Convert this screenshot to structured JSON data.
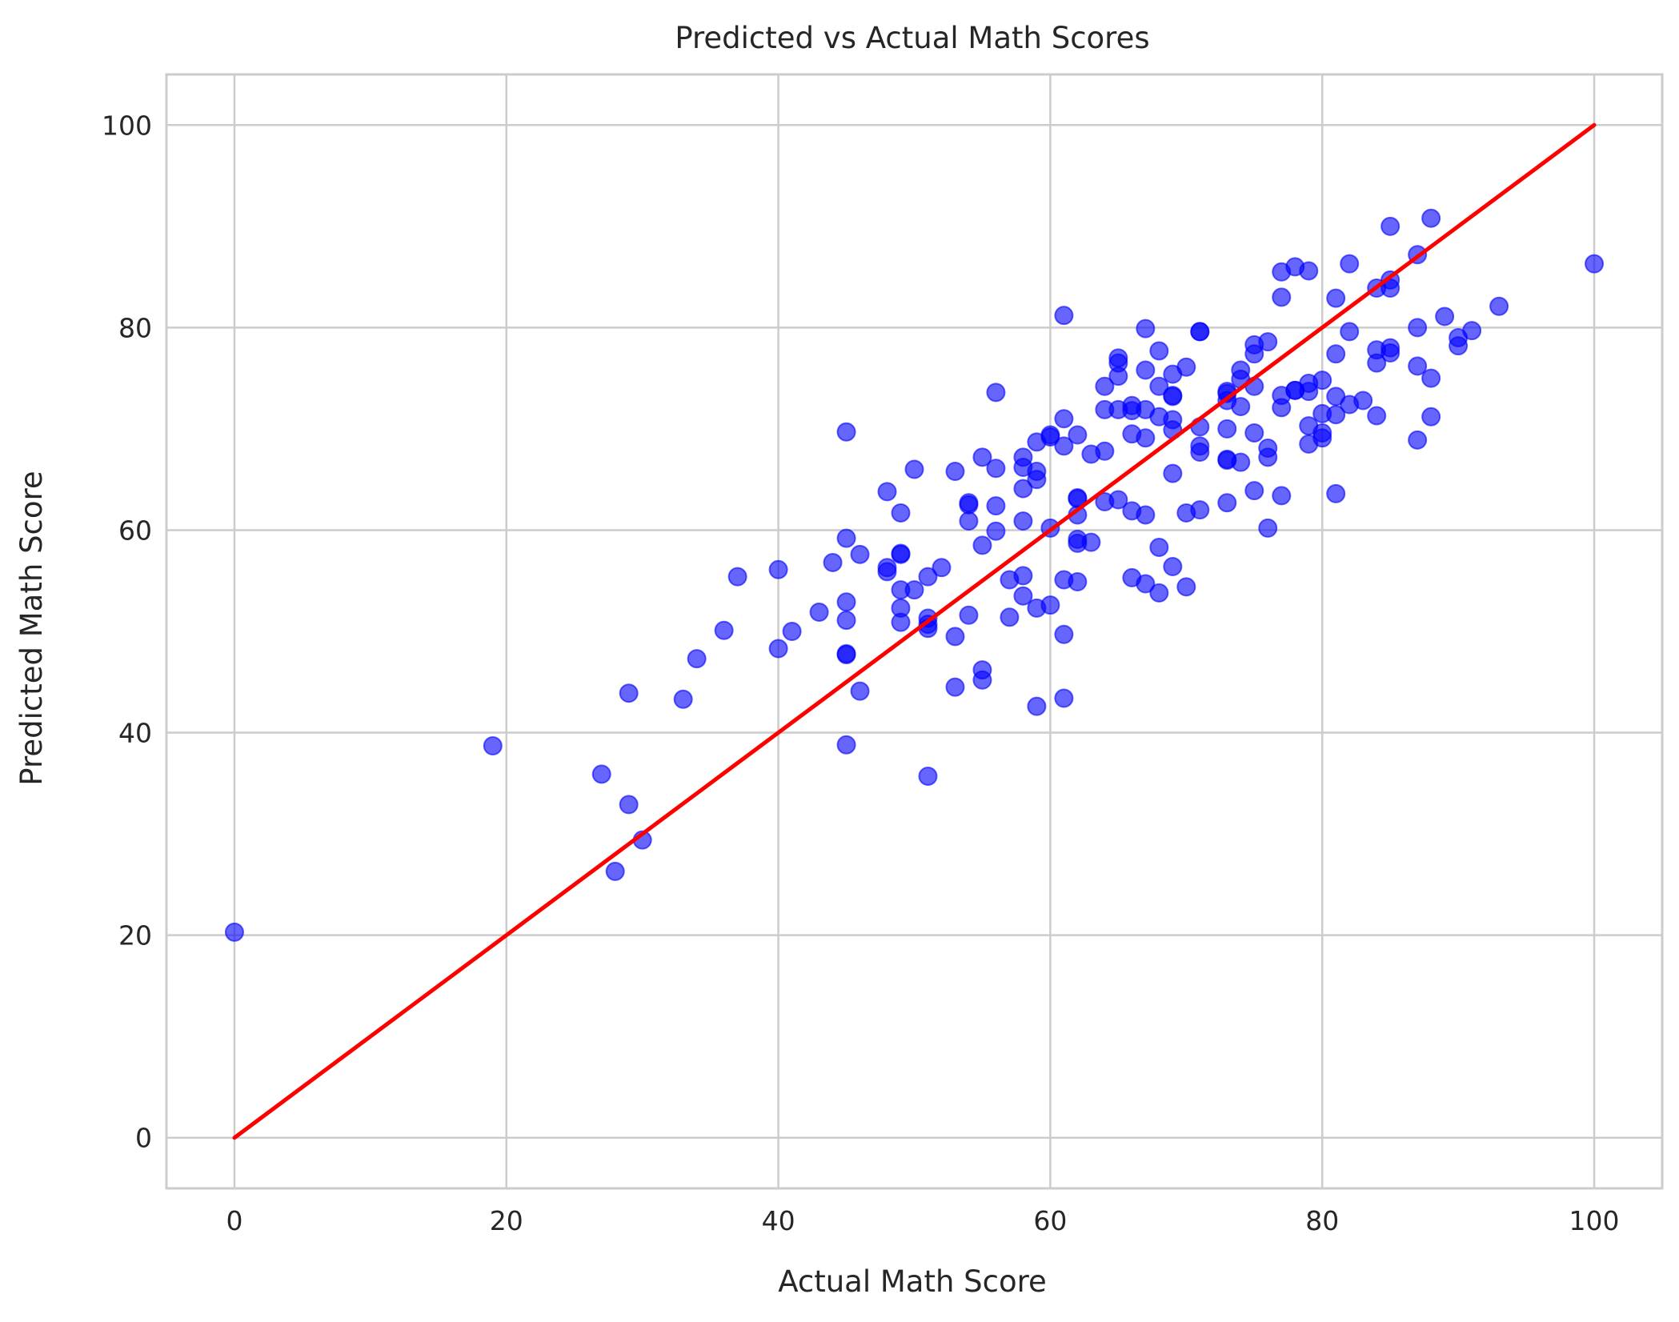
{
  "chart_data": {
    "type": "scatter",
    "title": "Predicted vs Actual Math Scores",
    "xlabel": "Actual Math Score",
    "ylabel": "Predicted Math Score",
    "xlim": [
      -5,
      105
    ],
    "ylim": [
      -5,
      105
    ],
    "xticks": [
      "0",
      "20",
      "40",
      "60",
      "80",
      "100"
    ],
    "yticks": [
      "0",
      "20",
      "40",
      "60",
      "80",
      "100"
    ],
    "grid": true,
    "colors": {
      "points": "#0000ff",
      "line": "#ff0000",
      "grid": "#cccccc",
      "axes": "#cccccc"
    },
    "reference_line": {
      "x": [
        0,
        100
      ],
      "y": [
        0,
        100
      ]
    },
    "points": [
      [
        0,
        20.3
      ],
      [
        19,
        38.7
      ],
      [
        27,
        35.9
      ],
      [
        28,
        26.3
      ],
      [
        29,
        32.9
      ],
      [
        29,
        43.9
      ],
      [
        30,
        29.4
      ],
      [
        33,
        43.3
      ],
      [
        34,
        47.3
      ],
      [
        36,
        50.1
      ],
      [
        37,
        55.4
      ],
      [
        40,
        56.1
      ],
      [
        40,
        48.3
      ],
      [
        41,
        50.0
      ],
      [
        43,
        51.9
      ],
      [
        44,
        56.8
      ],
      [
        45,
        69.7
      ],
      [
        45,
        59.2
      ],
      [
        45,
        52.9
      ],
      [
        45,
        51.1
      ],
      [
        45,
        47.8
      ],
      [
        45,
        47.7
      ],
      [
        45,
        38.8
      ],
      [
        46,
        57.6
      ],
      [
        46,
        44.1
      ],
      [
        48,
        63.8
      ],
      [
        48,
        56.3
      ],
      [
        48,
        55.9
      ],
      [
        49,
        61.7
      ],
      [
        49,
        57.6
      ],
      [
        49,
        57.7
      ],
      [
        49,
        54.1
      ],
      [
        49,
        52.3
      ],
      [
        49,
        50.9
      ],
      [
        50,
        66.0
      ],
      [
        50,
        54.1
      ],
      [
        51,
        55.4
      ],
      [
        51,
        51.3
      ],
      [
        51,
        50.7
      ],
      [
        51,
        50.3
      ],
      [
        51,
        35.7
      ],
      [
        52,
        56.3
      ],
      [
        53,
        65.8
      ],
      [
        53,
        49.5
      ],
      [
        53,
        44.5
      ],
      [
        54,
        62.7
      ],
      [
        54,
        62.5
      ],
      [
        54,
        60.9
      ],
      [
        54,
        51.6
      ],
      [
        55,
        67.2
      ],
      [
        55,
        58.5
      ],
      [
        55,
        46.2
      ],
      [
        55,
        45.2
      ],
      [
        56,
        73.6
      ],
      [
        56,
        66.1
      ],
      [
        56,
        62.4
      ],
      [
        56,
        59.9
      ],
      [
        57,
        55.1
      ],
      [
        57,
        51.4
      ],
      [
        58,
        67.2
      ],
      [
        58,
        66.2
      ],
      [
        58,
        64.1
      ],
      [
        58,
        60.9
      ],
      [
        58,
        55.5
      ],
      [
        58,
        53.5
      ],
      [
        59,
        68.7
      ],
      [
        59,
        65.8
      ],
      [
        59,
        65.0
      ],
      [
        59,
        52.3
      ],
      [
        59,
        42.6
      ],
      [
        60,
        69.4
      ],
      [
        60,
        69.2
      ],
      [
        60,
        60.2
      ],
      [
        60,
        52.6
      ],
      [
        61,
        81.2
      ],
      [
        61,
        71.0
      ],
      [
        61,
        68.3
      ],
      [
        61,
        55.1
      ],
      [
        61,
        49.7
      ],
      [
        61,
        43.4
      ],
      [
        62,
        69.4
      ],
      [
        62,
        63.1
      ],
      [
        62,
        63.2
      ],
      [
        62,
        61.5
      ],
      [
        62,
        59.1
      ],
      [
        62,
        58.7
      ],
      [
        62,
        54.9
      ],
      [
        63,
        67.5
      ],
      [
        63,
        58.8
      ],
      [
        64,
        74.2
      ],
      [
        64,
        71.9
      ],
      [
        64,
        67.8
      ],
      [
        64,
        62.8
      ],
      [
        65,
        77.0
      ],
      [
        65,
        76.5
      ],
      [
        65,
        75.2
      ],
      [
        65,
        71.9
      ],
      [
        65,
        63.0
      ],
      [
        66,
        72.3
      ],
      [
        66,
        71.8
      ],
      [
        66,
        69.5
      ],
      [
        66,
        61.9
      ],
      [
        66,
        55.3
      ],
      [
        67,
        79.9
      ],
      [
        67,
        75.8
      ],
      [
        67,
        71.9
      ],
      [
        67,
        69.1
      ],
      [
        67,
        61.5
      ],
      [
        67,
        54.7
      ],
      [
        68,
        77.7
      ],
      [
        68,
        74.2
      ],
      [
        68,
        71.2
      ],
      [
        68,
        58.3
      ],
      [
        68,
        53.8
      ],
      [
        69,
        75.4
      ],
      [
        69,
        73.3
      ],
      [
        69,
        73.2
      ],
      [
        69,
        70.9
      ],
      [
        69,
        69.9
      ],
      [
        69,
        65.6
      ],
      [
        69,
        56.4
      ],
      [
        70,
        76.1
      ],
      [
        70,
        61.7
      ],
      [
        70,
        54.4
      ],
      [
        71,
        79.6
      ],
      [
        71,
        79.6
      ],
      [
        71,
        70.2
      ],
      [
        71,
        68.3
      ],
      [
        71,
        67.7
      ],
      [
        71,
        62.0
      ],
      [
        73,
        73.5
      ],
      [
        73,
        73.7
      ],
      [
        73,
        72.8
      ],
      [
        73,
        70.0
      ],
      [
        73,
        67.0
      ],
      [
        73,
        66.9
      ],
      [
        73,
        62.7
      ],
      [
        74,
        75.8
      ],
      [
        74,
        74.9
      ],
      [
        74,
        72.2
      ],
      [
        74,
        66.7
      ],
      [
        75,
        78.3
      ],
      [
        75,
        77.4
      ],
      [
        75,
        74.2
      ],
      [
        75,
        69.6
      ],
      [
        75,
        63.9
      ],
      [
        76,
        78.6
      ],
      [
        76,
        68.1
      ],
      [
        76,
        67.2
      ],
      [
        76,
        60.2
      ],
      [
        77,
        85.5
      ],
      [
        77,
        83.0
      ],
      [
        77,
        73.3
      ],
      [
        77,
        72.1
      ],
      [
        77,
        63.4
      ],
      [
        78,
        86.0
      ],
      [
        78,
        73.8
      ],
      [
        78,
        73.8
      ],
      [
        79,
        85.6
      ],
      [
        79,
        74.5
      ],
      [
        79,
        73.7
      ],
      [
        79,
        70.3
      ],
      [
        79,
        68.5
      ],
      [
        80,
        74.8
      ],
      [
        80,
        71.5
      ],
      [
        80,
        69.6
      ],
      [
        80,
        69.1
      ],
      [
        81,
        82.9
      ],
      [
        81,
        77.4
      ],
      [
        81,
        73.2
      ],
      [
        81,
        71.4
      ],
      [
        81,
        63.6
      ],
      [
        82,
        86.3
      ],
      [
        82,
        79.6
      ],
      [
        82,
        72.4
      ],
      [
        83,
        72.8
      ],
      [
        84,
        83.9
      ],
      [
        84,
        77.8
      ],
      [
        84,
        76.5
      ],
      [
        84,
        71.3
      ],
      [
        85,
        90.0
      ],
      [
        85,
        84.7
      ],
      [
        85,
        83.9
      ],
      [
        85,
        78.0
      ],
      [
        85,
        77.5
      ],
      [
        87,
        87.2
      ],
      [
        87,
        80.0
      ],
      [
        87,
        76.2
      ],
      [
        87,
        68.9
      ],
      [
        88,
        90.8
      ],
      [
        88,
        75.0
      ],
      [
        88,
        71.2
      ],
      [
        89,
        81.1
      ],
      [
        90,
        79.0
      ],
      [
        90,
        78.2
      ],
      [
        91,
        79.7
      ],
      [
        93,
        82.1
      ],
      [
        100,
        86.3
      ]
    ]
  }
}
